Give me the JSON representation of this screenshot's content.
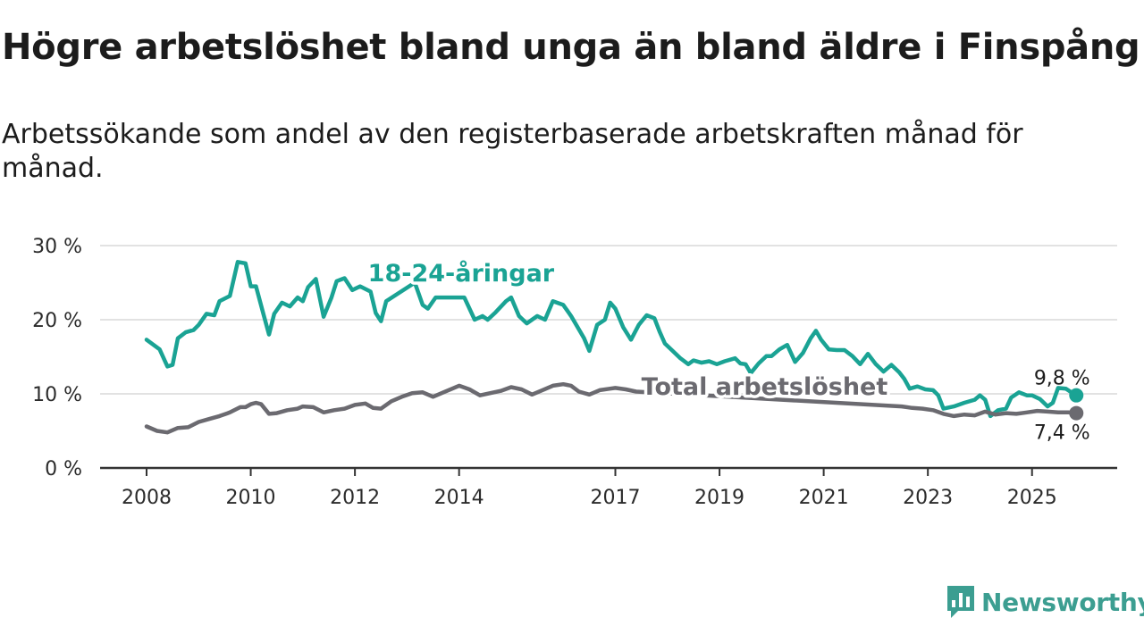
{
  "title": "Högre arbetslöshet bland unga än bland äldre i Finspång",
  "subtitle": "Arbetssökande som andel av den registerbaserade arbetskraften månad för månad.",
  "brand": {
    "name": "Newsworthy",
    "icon": "newsworthy-logo-icon",
    "color": "#3c9e91"
  },
  "chart_data": {
    "type": "line",
    "title": "Högre arbetslöshet bland unga än bland äldre i Finspång",
    "xlabel": "",
    "ylabel": "",
    "ylim": [
      0,
      30
    ],
    "xlim": [
      2008,
      2026
    ],
    "grid": true,
    "x_ticks": [
      {
        "value": 2008,
        "label": "2008"
      },
      {
        "value": 2010,
        "label": "2010"
      },
      {
        "value": 2012,
        "label": "2012"
      },
      {
        "value": 2014,
        "label": "2014"
      },
      {
        "value": 2017,
        "label": "2017"
      },
      {
        "value": 2019,
        "label": "2019"
      },
      {
        "value": 2021,
        "label": "2021"
      },
      {
        "value": 2023,
        "label": "2023"
      },
      {
        "value": 2025,
        "label": "2025"
      }
    ],
    "y_ticks": [
      {
        "value": 0,
        "label": "0 %"
      },
      {
        "value": 10,
        "label": "10 %"
      },
      {
        "value": 20,
        "label": "20 %"
      },
      {
        "value": 30,
        "label": "30 %"
      }
    ],
    "series": [
      {
        "name": "18-24-åringar",
        "color": "#1aa394",
        "label_x": 2012.25,
        "label_y": 25.2,
        "end_label": "9,8 %",
        "points": [
          [
            2008.0,
            17.3
          ],
          [
            2008.25,
            16.0
          ],
          [
            2008.4,
            13.7
          ],
          [
            2008.5,
            13.9
          ],
          [
            2008.6,
            17.5
          ],
          [
            2008.75,
            18.3
          ],
          [
            2008.9,
            18.6
          ],
          [
            2009.0,
            19.3
          ],
          [
            2009.15,
            20.8
          ],
          [
            2009.3,
            20.6
          ],
          [
            2009.4,
            22.5
          ],
          [
            2009.6,
            23.2
          ],
          [
            2009.75,
            27.8
          ],
          [
            2009.9,
            27.6
          ],
          [
            2010.0,
            24.5
          ],
          [
            2010.1,
            24.5
          ],
          [
            2010.25,
            20.6
          ],
          [
            2010.35,
            18.0
          ],
          [
            2010.45,
            20.8
          ],
          [
            2010.6,
            22.3
          ],
          [
            2010.75,
            21.8
          ],
          [
            2010.9,
            23.0
          ],
          [
            2011.0,
            22.5
          ],
          [
            2011.1,
            24.4
          ],
          [
            2011.25,
            25.5
          ],
          [
            2011.4,
            20.4
          ],
          [
            2011.55,
            23.0
          ],
          [
            2011.65,
            25.2
          ],
          [
            2011.8,
            25.6
          ],
          [
            2011.95,
            24.0
          ],
          [
            2012.1,
            24.5
          ],
          [
            2012.3,
            23.8
          ],
          [
            2012.4,
            20.9
          ],
          [
            2012.5,
            19.8
          ],
          [
            2012.6,
            22.5
          ],
          [
            2013.15,
            25.0
          ],
          [
            2013.3,
            22.0
          ],
          [
            2013.4,
            21.5
          ],
          [
            2013.55,
            23.0
          ],
          [
            2014.1,
            23.0
          ],
          [
            2014.3,
            20.0
          ],
          [
            2014.45,
            20.5
          ],
          [
            2014.55,
            20.0
          ],
          [
            2014.7,
            21.0
          ],
          [
            2014.9,
            22.5
          ],
          [
            2015.0,
            23.0
          ],
          [
            2015.15,
            20.5
          ],
          [
            2015.3,
            19.5
          ],
          [
            2015.5,
            20.5
          ],
          [
            2015.65,
            20.0
          ],
          [
            2015.8,
            22.5
          ],
          [
            2016.0,
            22.0
          ],
          [
            2016.15,
            20.5
          ],
          [
            2016.4,
            17.5
          ],
          [
            2016.5,
            15.8
          ],
          [
            2016.65,
            19.3
          ],
          [
            2016.8,
            20.0
          ],
          [
            2016.9,
            22.3
          ],
          [
            2017.0,
            21.5
          ],
          [
            2017.15,
            19.0
          ],
          [
            2017.3,
            17.3
          ],
          [
            2017.45,
            19.3
          ],
          [
            2017.6,
            20.6
          ],
          [
            2017.75,
            20.2
          ],
          [
            2017.85,
            18.4
          ],
          [
            2017.95,
            16.8
          ],
          [
            2018.1,
            15.8
          ],
          [
            2018.25,
            14.8
          ],
          [
            2018.4,
            14.0
          ],
          [
            2018.5,
            14.5
          ],
          [
            2018.65,
            14.2
          ],
          [
            2018.8,
            14.4
          ],
          [
            2018.95,
            14.0
          ],
          [
            2019.1,
            14.4
          ],
          [
            2019.3,
            14.8
          ],
          [
            2019.4,
            14.1
          ],
          [
            2019.5,
            14.0
          ],
          [
            2019.6,
            12.8
          ],
          [
            2019.75,
            14.1
          ],
          [
            2019.9,
            15.1
          ],
          [
            2020.0,
            15.1
          ],
          [
            2020.15,
            16.0
          ],
          [
            2020.3,
            16.6
          ],
          [
            2020.45,
            14.3
          ],
          [
            2020.6,
            15.5
          ],
          [
            2020.75,
            17.5
          ],
          [
            2020.85,
            18.5
          ],
          [
            2020.95,
            17.3
          ],
          [
            2021.1,
            16.0
          ],
          [
            2021.25,
            15.9
          ],
          [
            2021.4,
            15.9
          ],
          [
            2021.55,
            15.1
          ],
          [
            2021.7,
            14.0
          ],
          [
            2021.85,
            15.4
          ],
          [
            2022.0,
            14.0
          ],
          [
            2022.15,
            13.0
          ],
          [
            2022.3,
            13.9
          ],
          [
            2022.45,
            12.9
          ],
          [
            2022.55,
            12.0
          ],
          [
            2022.65,
            10.7
          ],
          [
            2022.8,
            11.0
          ],
          [
            2022.95,
            10.6
          ],
          [
            2023.1,
            10.5
          ],
          [
            2023.2,
            9.8
          ],
          [
            2023.3,
            8.0
          ],
          [
            2023.5,
            8.3
          ],
          [
            2023.7,
            8.8
          ],
          [
            2023.9,
            9.2
          ],
          [
            2024.0,
            9.8
          ],
          [
            2024.1,
            9.2
          ],
          [
            2024.2,
            7.0
          ],
          [
            2024.35,
            7.8
          ],
          [
            2024.5,
            8.0
          ],
          [
            2024.6,
            9.5
          ],
          [
            2024.75,
            10.2
          ],
          [
            2024.9,
            9.8
          ],
          [
            2025.0,
            9.8
          ],
          [
            2025.15,
            9.3
          ],
          [
            2025.3,
            8.3
          ],
          [
            2025.4,
            8.8
          ],
          [
            2025.5,
            10.8
          ],
          [
            2025.65,
            10.7
          ],
          [
            2025.8,
            10.0
          ],
          [
            2025.85,
            9.8
          ]
        ]
      },
      {
        "name": "Total arbetslöshet",
        "color": "#6b6a70",
        "label_x": 2017.5,
        "label_y": 9.9,
        "end_label": "7,4 %",
        "points": [
          [
            2008.0,
            5.6
          ],
          [
            2008.2,
            5.0
          ],
          [
            2008.4,
            4.8
          ],
          [
            2008.6,
            5.4
          ],
          [
            2008.8,
            5.5
          ],
          [
            2009.0,
            6.2
          ],
          [
            2009.2,
            6.6
          ],
          [
            2009.4,
            7.0
          ],
          [
            2009.6,
            7.5
          ],
          [
            2009.8,
            8.2
          ],
          [
            2009.9,
            8.2
          ],
          [
            2010.0,
            8.6
          ],
          [
            2010.1,
            8.8
          ],
          [
            2010.2,
            8.6
          ],
          [
            2010.35,
            7.3
          ],
          [
            2010.5,
            7.4
          ],
          [
            2010.7,
            7.8
          ],
          [
            2010.9,
            8.0
          ],
          [
            2011.0,
            8.3
          ],
          [
            2011.2,
            8.2
          ],
          [
            2011.4,
            7.5
          ],
          [
            2011.6,
            7.8
          ],
          [
            2011.8,
            8.0
          ],
          [
            2012.0,
            8.5
          ],
          [
            2012.2,
            8.7
          ],
          [
            2012.35,
            8.1
          ],
          [
            2012.5,
            8.0
          ],
          [
            2012.7,
            9.0
          ],
          [
            2012.9,
            9.6
          ],
          [
            2013.1,
            10.1
          ],
          [
            2013.3,
            10.2
          ],
          [
            2013.5,
            9.6
          ],
          [
            2013.7,
            10.2
          ],
          [
            2013.9,
            10.8
          ],
          [
            2014.0,
            11.1
          ],
          [
            2014.2,
            10.6
          ],
          [
            2014.4,
            9.8
          ],
          [
            2014.6,
            10.1
          ],
          [
            2014.8,
            10.4
          ],
          [
            2015.0,
            10.9
          ],
          [
            2015.2,
            10.6
          ],
          [
            2015.4,
            9.9
          ],
          [
            2015.6,
            10.5
          ],
          [
            2015.8,
            11.1
          ],
          [
            2016.0,
            11.3
          ],
          [
            2016.15,
            11.1
          ],
          [
            2016.3,
            10.3
          ],
          [
            2016.5,
            9.9
          ],
          [
            2016.7,
            10.5
          ],
          [
            2016.9,
            10.7
          ],
          [
            2017.0,
            10.8
          ],
          [
            2017.2,
            10.6
          ],
          [
            2017.4,
            10.3
          ],
          [
            2022.5,
            8.3
          ],
          [
            2022.7,
            8.1
          ],
          [
            2022.9,
            8.0
          ],
          [
            2023.1,
            7.8
          ],
          [
            2023.3,
            7.3
          ],
          [
            2023.5,
            7.0
          ],
          [
            2023.7,
            7.2
          ],
          [
            2023.9,
            7.1
          ],
          [
            2024.1,
            7.6
          ],
          [
            2024.3,
            7.2
          ],
          [
            2024.5,
            7.4
          ],
          [
            2024.7,
            7.3
          ],
          [
            2024.9,
            7.5
          ],
          [
            2025.1,
            7.7
          ],
          [
            2025.3,
            7.6
          ],
          [
            2025.5,
            7.5
          ],
          [
            2025.7,
            7.5
          ],
          [
            2025.85,
            7.4
          ]
        ]
      }
    ]
  }
}
